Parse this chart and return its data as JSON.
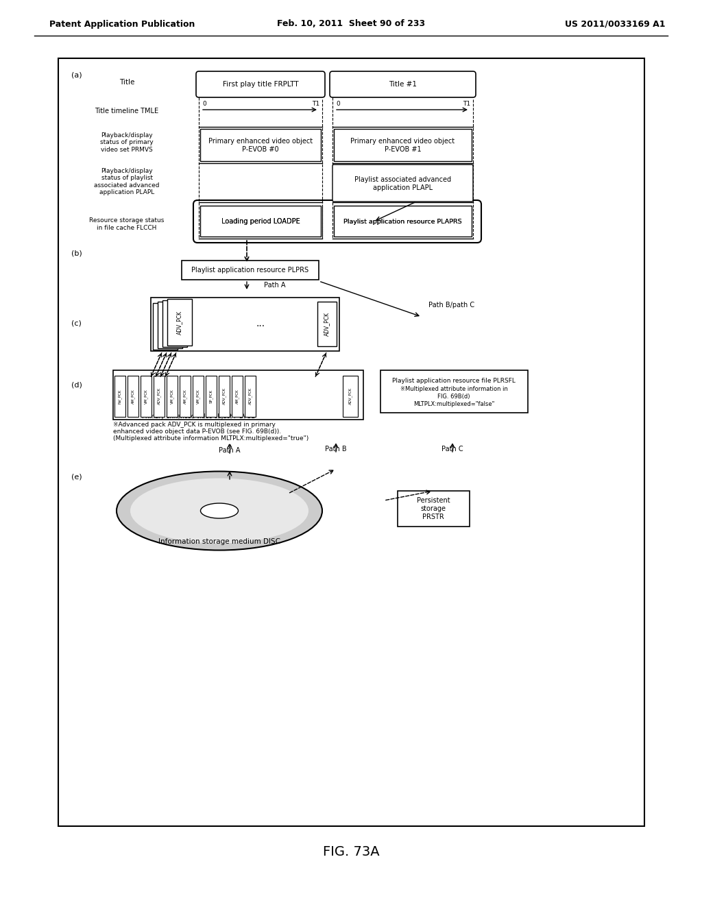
{
  "header_left": "Patent Application Publication",
  "header_mid": "Feb. 10, 2011  Sheet 90 of 233",
  "header_right": "US 2011/0033169 A1",
  "footer_label": "FIG. 73A",
  "bg_color": "#ffffff",
  "border_color": "#000000",
  "text_color": "#000000"
}
